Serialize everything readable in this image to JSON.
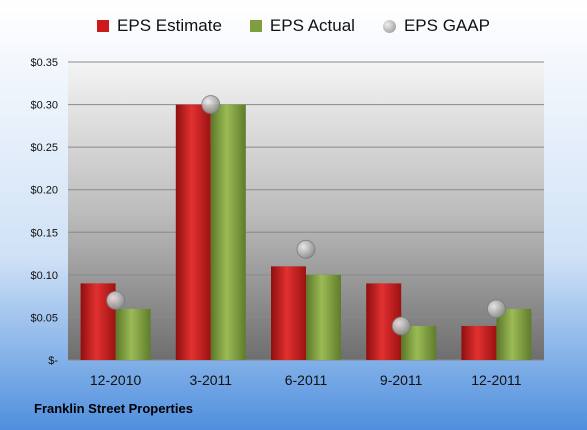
{
  "chart_data": {
    "type": "bar",
    "title": "",
    "xlabel": "",
    "ylabel": "",
    "categories": [
      "12-2010",
      "3-2011",
      "6-2011",
      "9-2011",
      "12-2011"
    ],
    "series": [
      {
        "name": "EPS Estimate",
        "kind": "bar",
        "color": "#cc1a1a",
        "values": [
          0.09,
          0.3,
          0.11,
          0.09,
          0.04
        ]
      },
      {
        "name": "EPS Actual",
        "kind": "bar",
        "color": "#7f9e3c",
        "values": [
          0.06,
          0.3,
          0.1,
          0.04,
          0.06
        ]
      },
      {
        "name": "EPS GAAP",
        "kind": "marker",
        "color": "#a8a8a8",
        "values": [
          0.07,
          0.3,
          0.13,
          0.04,
          0.06
        ]
      }
    ],
    "y_ticks": [
      0,
      0.05,
      0.1,
      0.15,
      0.2,
      0.25,
      0.3,
      0.35
    ],
    "y_tick_labels": [
      "$-",
      "$0.05",
      "$0.10",
      "$0.15",
      "$0.20",
      "$0.25",
      "$0.30",
      "$0.35"
    ],
    "ylim": [
      0,
      0.35
    ],
    "grid": true,
    "legend_position": "top",
    "company": "Franklin Street Properties"
  }
}
